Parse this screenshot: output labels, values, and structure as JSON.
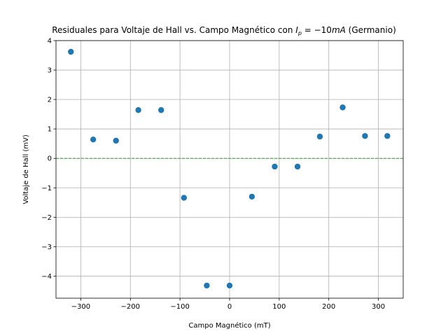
{
  "chart_data": {
    "type": "scatter",
    "title": "Residuales para Voltaje de Hall vs. Campo Magnético con I_p = −10mA (Germanio)",
    "title_parts": {
      "before": "Residuales para Voltaje de Hall vs. Campo Magnético con ",
      "var": "I",
      "sub": "p",
      "eq": " = −10",
      "unit": "mA",
      "after": " (Germanio)"
    },
    "xlabel": "Campo Magnético (mT)",
    "ylabel": "Voltaje de Hall (mV)",
    "xlim": [
      -350,
      350
    ],
    "ylim": [
      -4.75,
      4.0
    ],
    "xticks": [
      -300,
      -200,
      -100,
      0,
      100,
      200,
      300
    ],
    "yticks": [
      -4,
      -3,
      -2,
      -1,
      0,
      1,
      2,
      3,
      4
    ],
    "xtick_labels": [
      "−300",
      "−200",
      "−100",
      "0",
      "100",
      "200",
      "300"
    ],
    "ytick_labels": [
      "−4",
      "−3",
      "−2",
      "−1",
      "0",
      "1",
      "2",
      "3",
      "4"
    ],
    "grid": true,
    "reference_line": {
      "y": 0,
      "style": "dashed",
      "color": "#2ca02c"
    },
    "point_color": "#1f77b4",
    "x": [
      -320,
      -275,
      -229,
      -184,
      -138,
      -92,
      -46,
      0,
      45,
      91,
      137,
      182,
      228,
      273,
      318
    ],
    "y": [
      3.62,
      0.64,
      0.6,
      1.64,
      1.64,
      -1.34,
      -4.32,
      -4.32,
      -1.3,
      -0.28,
      -0.28,
      0.74,
      1.73,
      0.76,
      0.76
    ]
  }
}
